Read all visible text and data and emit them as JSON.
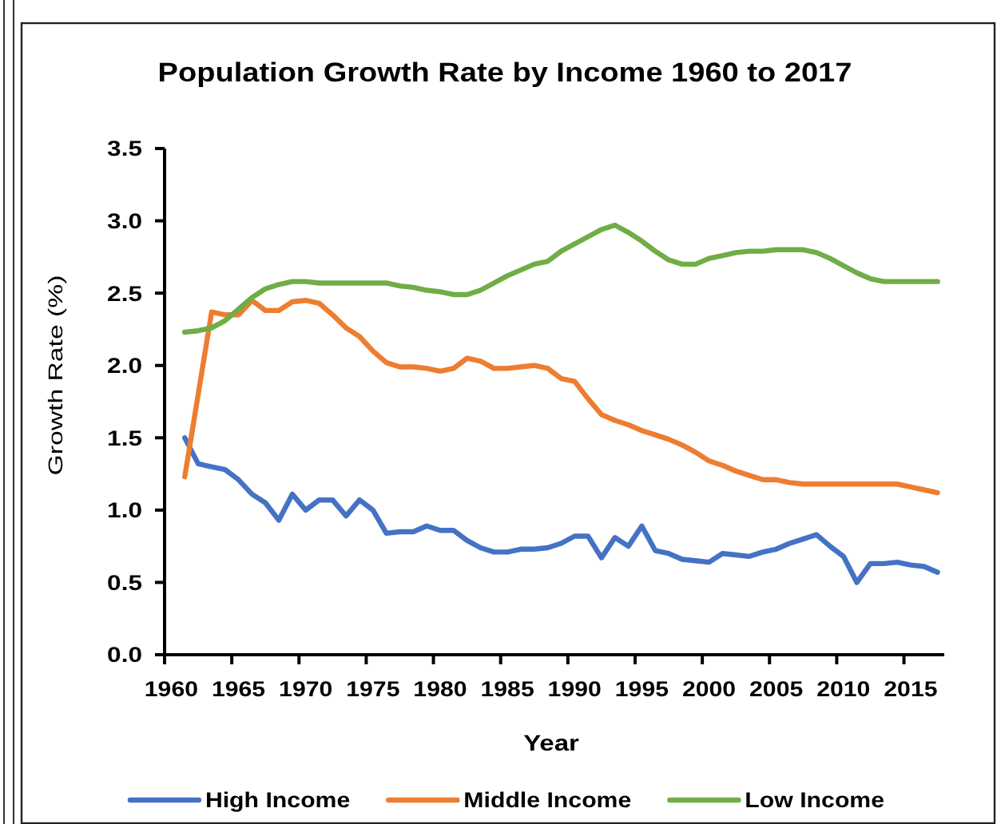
{
  "chart_data": {
    "type": "line",
    "title": "Population Growth Rate by Income 1960 to 2017",
    "xlabel": "Year",
    "ylabel": "Growth Rate (%)",
    "categories": [
      "1960",
      null,
      null,
      null,
      null,
      "1965",
      null,
      null,
      null,
      null,
      "1970",
      null,
      null,
      null,
      null,
      "1975",
      null,
      null,
      null,
      null,
      "1980",
      null,
      null,
      null,
      null,
      "1985",
      null,
      null,
      null,
      null,
      "1990",
      null,
      null,
      null,
      null,
      "1995",
      null,
      null,
      null,
      null,
      "2000",
      null,
      null,
      null,
      null,
      "2005",
      null,
      null,
      null,
      null,
      "2010",
      null,
      null,
      null,
      null,
      "2015",
      null,
      null
    ],
    "series": [
      {
        "name": "High Income",
        "color": "#4472c4",
        "values": [
          null,
          1.5,
          1.32,
          1.3,
          1.28,
          1.21,
          1.11,
          1.05,
          0.93,
          1.11,
          1.0,
          1.07,
          1.07,
          0.96,
          1.07,
          1.0,
          0.84,
          0.85,
          0.85,
          0.89,
          0.86,
          0.86,
          0.79,
          0.74,
          0.71,
          0.71,
          0.73,
          0.73,
          0.74,
          0.77,
          0.82,
          0.82,
          0.67,
          0.81,
          0.75,
          0.89,
          0.72,
          0.7,
          0.66,
          0.65,
          0.64,
          0.7,
          0.69,
          0.68,
          0.71,
          0.73,
          0.77,
          0.8,
          0.83,
          0.75,
          0.68,
          0.5,
          0.63,
          0.63,
          0.64,
          0.62,
          0.61,
          0.57
        ]
      },
      {
        "name": "Middle Income",
        "color": "#ed7d31",
        "values": [
          null,
          1.23,
          1.8,
          2.37,
          2.35,
          2.35,
          2.45,
          2.38,
          2.38,
          2.44,
          2.45,
          2.43,
          2.35,
          2.26,
          2.2,
          2.1,
          2.02,
          1.99,
          1.99,
          1.98,
          1.96,
          1.98,
          2.05,
          2.03,
          1.98,
          1.98,
          1.99,
          2.0,
          1.98,
          1.91,
          1.89,
          1.77,
          1.66,
          1.62,
          1.59,
          1.55,
          1.52,
          1.49,
          1.45,
          1.4,
          1.34,
          1.31,
          1.27,
          1.24,
          1.21,
          1.21,
          1.19,
          1.18,
          1.18,
          1.18,
          1.18,
          1.18,
          1.18,
          1.18,
          1.18,
          1.16,
          1.14,
          1.12
        ]
      },
      {
        "name": "Low Income",
        "color": "#70ad47",
        "values": [
          null,
          2.23,
          2.24,
          2.26,
          2.31,
          2.39,
          2.47,
          2.53,
          2.56,
          2.58,
          2.58,
          2.57,
          2.57,
          2.57,
          2.57,
          2.57,
          2.57,
          2.55,
          2.54,
          2.52,
          2.51,
          2.49,
          2.49,
          2.52,
          2.57,
          2.62,
          2.66,
          2.7,
          2.72,
          2.79,
          2.84,
          2.89,
          2.94,
          2.97,
          2.92,
          2.86,
          2.79,
          2.73,
          2.7,
          2.7,
          2.74,
          2.76,
          2.78,
          2.79,
          2.79,
          2.8,
          2.8,
          2.8,
          2.78,
          2.74,
          2.69,
          2.64,
          2.6,
          2.58,
          2.58,
          2.58,
          2.58,
          2.58
        ]
      }
    ],
    "ylim": [
      0,
      3.5
    ],
    "yticks": [
      {
        "value": 0,
        "label": "0.0"
      },
      0.5,
      {
        "value": 1,
        "label": "1.0"
      },
      1.5,
      {
        "value": 2,
        "label": "2.0"
      },
      2.5,
      {
        "value": 3,
        "label": "3.0"
      },
      3.5
    ],
    "legend": "bottom"
  }
}
